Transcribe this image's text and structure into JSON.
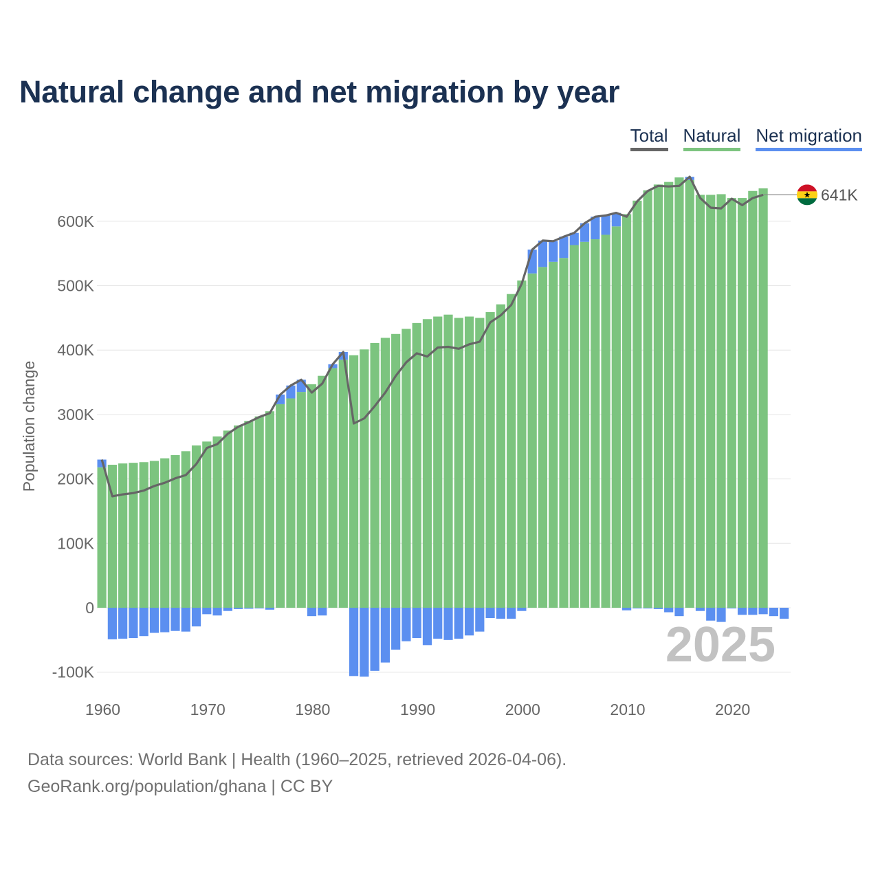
{
  "title": "Natural change and net migration by year",
  "legend": {
    "total": "Total",
    "natural": "Natural",
    "migration": "Net migration"
  },
  "footer": {
    "line1": "Data sources: World Bank | Health (1960–2025, retrieved 2026-04-06).",
    "line2": "GeoRank.org/population/ghana | CC BY"
  },
  "colors": {
    "natural": "#7cc47f",
    "migration": "#5b8ff0",
    "total": "#666666",
    "title": "#1b3152"
  },
  "chart_data": {
    "type": "bar",
    "ylabel": "Population change",
    "xlabel": "",
    "ylim": [
      -110000,
      690000
    ],
    "yticks": [
      -100000,
      0,
      100000,
      200000,
      300000,
      400000,
      500000,
      600000
    ],
    "ytick_labels": [
      "-100K",
      "0",
      "100K",
      "200K",
      "300K",
      "400K",
      "500K",
      "600K"
    ],
    "xticks": [
      1960,
      1970,
      1980,
      1990,
      2000,
      2010,
      2020
    ],
    "xtick_labels": [
      "1960",
      "1970",
      "1980",
      "1990",
      "2000",
      "2010",
      "2020"
    ],
    "year_watermark": "2025",
    "end_label": "641K",
    "flag": "ghana-flag",
    "years": [
      1960,
      1961,
      1962,
      1963,
      1964,
      1965,
      1966,
      1967,
      1968,
      1969,
      1970,
      1971,
      1972,
      1973,
      1974,
      1975,
      1976,
      1977,
      1978,
      1979,
      1980,
      1981,
      1982,
      1983,
      1984,
      1985,
      1986,
      1987,
      1988,
      1989,
      1990,
      1991,
      1992,
      1993,
      1994,
      1995,
      1996,
      1997,
      1998,
      1999,
      2000,
      2001,
      2002,
      2003,
      2004,
      2005,
      2006,
      2007,
      2008,
      2009,
      2010,
      2011,
      2012,
      2013,
      2014,
      2015,
      2016,
      2017,
      2018,
      2019,
      2020,
      2021,
      2022,
      2023,
      2024,
      2025
    ],
    "series": [
      {
        "name": "Natural",
        "values": [
          218000,
          222000,
          224000,
          225000,
          226000,
          228000,
          232000,
          237000,
          243000,
          252000,
          258000,
          266000,
          275000,
          283000,
          290000,
          297000,
          305000,
          316000,
          325000,
          335000,
          347000,
          360000,
          372000,
          385000,
          392000,
          401000,
          411000,
          419000,
          425000,
          433000,
          442000,
          448000,
          452000,
          455000,
          450000,
          452000,
          450000,
          459000,
          471000,
          487000,
          508000,
          519000,
          529000,
          537000,
          543000,
          563000,
          568000,
          572000,
          579000,
          592000,
          611000,
          632000,
          648000,
          657000,
          661000,
          668000,
          664000,
          641000,
          641000,
          642000,
          636000,
          636000,
          647000,
          651000,
          null,
          null
        ]
      },
      {
        "name": "Net migration",
        "values": [
          12000,
          -49000,
          -48000,
          -47000,
          -44000,
          -39000,
          -38000,
          -36000,
          -37000,
          -29000,
          -10000,
          -12000,
          -5000,
          -2000,
          -1500,
          -1000,
          -3000,
          15000,
          20000,
          19000,
          -13000,
          -12000,
          6000,
          12000,
          -106000,
          -107000,
          -98000,
          -85000,
          -65000,
          -52000,
          -47000,
          -58000,
          -48000,
          -50000,
          -48000,
          -43000,
          -37000,
          -16000,
          -17000,
          -17000,
          -5000,
          37000,
          41000,
          32000,
          33000,
          19000,
          29000,
          35000,
          30000,
          21000,
          -4000,
          -1000,
          -1000,
          -2000,
          -7000,
          -13000,
          5000,
          -5000,
          -20000,
          -22000,
          -1000,
          -11000,
          -11000,
          -10000,
          -13000,
          -17000
        ]
      },
      {
        "name": "Total",
        "values": [
          230000,
          173000,
          176000,
          178000,
          182000,
          189000,
          194000,
          201000,
          206000,
          223000,
          248000,
          254000,
          270000,
          281000,
          288000,
          296000,
          302000,
          331000,
          345000,
          354000,
          334000,
          348000,
          378000,
          397000,
          286000,
          294000,
          313000,
          334000,
          360000,
          381000,
          395000,
          390000,
          404000,
          405000,
          402000,
          409000,
          413000,
          443000,
          454000,
          470000,
          503000,
          556000,
          570000,
          569000,
          576000,
          582000,
          597000,
          607000,
          609000,
          613000,
          607000,
          631000,
          647000,
          655000,
          654000,
          655000,
          669000,
          636000,
          621000,
          620000,
          635000,
          625000,
          636000,
          641000,
          null,
          null
        ]
      }
    ]
  }
}
